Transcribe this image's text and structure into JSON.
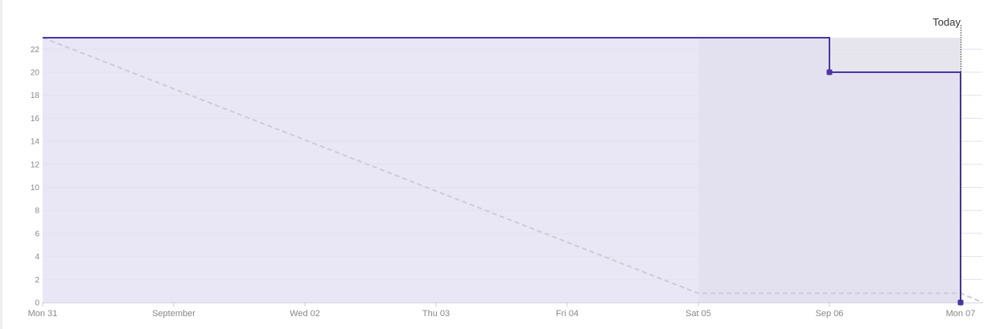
{
  "chart_data": {
    "type": "line",
    "title": "",
    "xlabel": "",
    "ylabel": "",
    "ylim": [
      0,
      23
    ],
    "grid": true,
    "legend": "none",
    "x_ticks": [
      {
        "t": 0,
        "label": "Mon 31"
      },
      {
        "t": 1,
        "label": "September"
      },
      {
        "t": 2,
        "label": "Wed 02"
      },
      {
        "t": 3,
        "label": "Thu 03"
      },
      {
        "t": 4,
        "label": "Fri 04"
      },
      {
        "t": 5,
        "label": "Sat 05"
      },
      {
        "t": 6,
        "label": "Sep 06"
      },
      {
        "t": 7,
        "label": "Mon 07"
      }
    ],
    "y_ticks": [
      0,
      2,
      4,
      6,
      8,
      10,
      12,
      14,
      16,
      18,
      20,
      22
    ],
    "weekend_range": [
      5,
      7
    ],
    "today": {
      "t": 7,
      "label": "Today"
    },
    "series": [
      {
        "role": "remaining",
        "style": "step",
        "color": "#4b35a5",
        "fill": "#e9e6f6",
        "points": [
          [
            0,
            23
          ],
          [
            6,
            23
          ],
          [
            6,
            20
          ],
          [
            7,
            20
          ],
          [
            7,
            0
          ]
        ],
        "markers": [
          [
            6,
            20
          ],
          [
            7,
            0
          ]
        ]
      },
      {
        "role": "ideal",
        "style": "dashed",
        "color": "#cfcbd6",
        "points": [
          [
            0,
            23
          ],
          [
            5,
            0.8
          ],
          [
            7,
            0.8
          ],
          [
            7.17,
            0
          ]
        ]
      }
    ],
    "scope_color": "#efefef",
    "weekend_color": "#e1dfec",
    "grid_color": "#e3e1ea"
  }
}
